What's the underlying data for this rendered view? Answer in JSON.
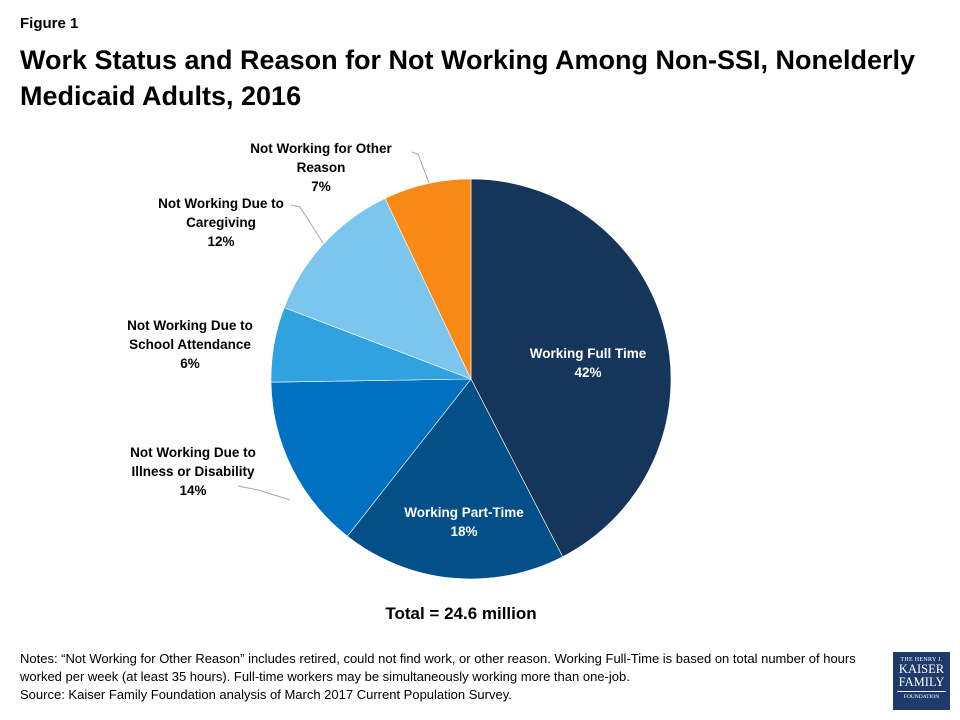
{
  "figure_label": "Figure 1",
  "chart_data": {
    "type": "pie",
    "title": "Work Status and Reason for Not Working Among Non-SSI, Nonelderly Medicaid Adults, 2016",
    "slices": [
      {
        "label": "Working Full Time",
        "value": 42,
        "value_label": "42%",
        "color": "#15355a"
      },
      {
        "label": "Working Part-Time",
        "value": 18,
        "value_label": "18%",
        "color": "#034f88"
      },
      {
        "label": "Not Working Due to Illness or Disability",
        "value": 14,
        "value_label": "14%",
        "color": "#0070c0"
      },
      {
        "label": "Not Working Due to School Attendance",
        "value": 6,
        "value_label": "6%",
        "color": "#31a2e0"
      },
      {
        "label": "Not Working Due to Caregiving",
        "value": 12,
        "value_label": "12%",
        "color": "#7cc6ee"
      },
      {
        "label": "Not Working for Other Reason",
        "value": 7,
        "value_label": "7%",
        "color": "#f98a15"
      }
    ],
    "label_lines": [
      [
        "Working Full Time"
      ],
      [
        "Working Part-Time"
      ],
      [
        "Not Working Due to",
        "Illness or Disability"
      ],
      [
        "Not Working Due to",
        "School Attendance"
      ],
      [
        "Not Working Due to",
        "Caregiving"
      ],
      [
        "Not Working for Other",
        "Reason"
      ]
    ],
    "total": "Total  = 24.6 million"
  },
  "notes": [
    "Notes: “Not Working for Other Reason” includes retired, could not find work, or other reason. Working Full-Time is based on total number of hours worked per week (at least 35 hours). Full-time workers may be simultaneously working more than one-job.",
    "Source: Kaiser Family Foundation analysis of March 2017 Current Population Survey."
  ],
  "logo": {
    "line1": "THE HENRY J.",
    "line2": "KAISER",
    "line3": "FAMILY",
    "line4": "FOUNDATION"
  }
}
